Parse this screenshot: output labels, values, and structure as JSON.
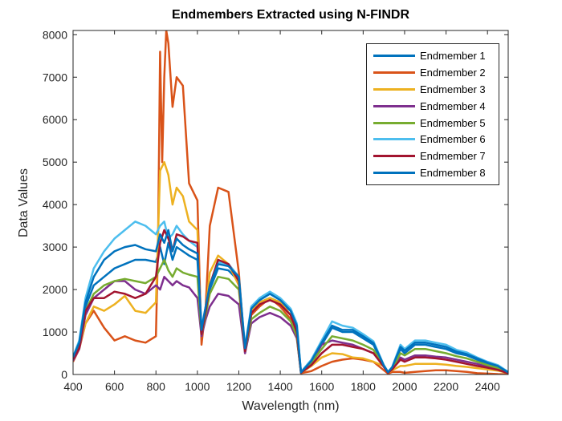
{
  "chart_data": {
    "type": "line",
    "title": "Endmembers Extracted using N-FINDR",
    "xlabel": "Wavelength (nm)",
    "ylabel": "Data Values",
    "xlim": [
      400,
      2500
    ],
    "ylim": [
      0,
      8100
    ],
    "xticks": [
      "400",
      "600",
      "800",
      "1000",
      "1200",
      "1400",
      "1600",
      "1800",
      "2000",
      "2200",
      "2400"
    ],
    "yticks": [
      "0",
      "1000",
      "2000",
      "3000",
      "4000",
      "5000",
      "6000",
      "7000",
      "8000"
    ],
    "legend_position": "top-right",
    "grid": false,
    "series": [
      {
        "name": "Endmember 1",
        "color": "#0072BD",
        "x": [
          400,
          430,
          460,
          500,
          550,
          600,
          650,
          700,
          750,
          800,
          820,
          840,
          860,
          880,
          900,
          930,
          960,
          1000,
          1020,
          1040,
          1060,
          1100,
          1150,
          1200,
          1230,
          1260,
          1300,
          1350,
          1400,
          1450,
          1480,
          1500,
          1550,
          1600,
          1650,
          1700,
          1750,
          1800,
          1850,
          1900,
          1920,
          1940,
          1980,
          2000,
          2050,
          2100,
          2150,
          2200,
          2250,
          2300,
          2350,
          2400,
          2450,
          2500
        ],
        "y": [
          400,
          700,
          1600,
          2100,
          2300,
          2500,
          2600,
          2700,
          2700,
          2650,
          3000,
          2600,
          3100,
          2700,
          3000,
          2900,
          2800,
          2700,
          1000,
          1500,
          2000,
          2500,
          2450,
          2200,
          600,
          1500,
          1700,
          1800,
          1700,
          1500,
          1100,
          50,
          300,
          700,
          1100,
          1000,
          1000,
          850,
          700,
          200,
          50,
          150,
          600,
          500,
          700,
          700,
          650,
          600,
          500,
          450,
          350,
          250,
          200,
          50
        ]
      },
      {
        "name": "Endmember 2",
        "color": "#D95319",
        "x": [
          400,
          430,
          460,
          500,
          550,
          600,
          650,
          700,
          750,
          800,
          810,
          820,
          830,
          840,
          850,
          860,
          880,
          900,
          930,
          960,
          1000,
          1020,
          1040,
          1060,
          1100,
          1150,
          1200,
          1230,
          1260,
          1300,
          1350,
          1400,
          1450,
          1480,
          1500,
          1550,
          1600,
          1650,
          1700,
          1750,
          1800,
          1850,
          1900,
          1920,
          1940,
          1980,
          2000,
          2050,
          2100,
          2150,
          2200,
          2250,
          2300,
          2350,
          2400,
          2450,
          2500
        ],
        "y": [
          300,
          600,
          1200,
          1500,
          1100,
          800,
          900,
          800,
          750,
          900,
          3000,
          7600,
          5000,
          7000,
          8100,
          7800,
          6300,
          7000,
          6800,
          4500,
          4100,
          700,
          1600,
          3500,
          4400,
          4300,
          2400,
          500,
          1400,
          1600,
          1800,
          1600,
          1300,
          900,
          30,
          80,
          200,
          300,
          350,
          380,
          350,
          300,
          100,
          20,
          60,
          60,
          40,
          60,
          80,
          100,
          100,
          80,
          60,
          30,
          20,
          10,
          5
        ]
      },
      {
        "name": "Endmember 3",
        "color": "#EDB120",
        "x": [
          400,
          430,
          460,
          500,
          550,
          600,
          650,
          700,
          750,
          800,
          820,
          840,
          860,
          880,
          900,
          930,
          960,
          1000,
          1020,
          1040,
          1060,
          1100,
          1150,
          1200,
          1230,
          1260,
          1300,
          1350,
          1400,
          1450,
          1480,
          1500,
          1550,
          1600,
          1650,
          1700,
          1750,
          1800,
          1850,
          1900,
          1920,
          1940,
          1980,
          2000,
          2050,
          2100,
          2150,
          2200,
          2250,
          2300,
          2350,
          2400,
          2450,
          2500
        ],
        "y": [
          350,
          650,
          1200,
          1600,
          1500,
          1650,
          1850,
          1500,
          1450,
          1700,
          4800,
          5000,
          4700,
          4000,
          4400,
          4200,
          3600,
          3400,
          900,
          1500,
          2400,
          2800,
          2600,
          2100,
          550,
          1500,
          1700,
          1800,
          1700,
          1400,
          1000,
          40,
          200,
          400,
          500,
          480,
          400,
          380,
          300,
          200,
          40,
          100,
          200,
          200,
          250,
          250,
          250,
          230,
          200,
          180,
          150,
          120,
          90,
          30
        ]
      },
      {
        "name": "Endmember 4",
        "color": "#7E2F8E",
        "x": [
          400,
          430,
          460,
          500,
          550,
          600,
          650,
          700,
          750,
          800,
          820,
          840,
          860,
          880,
          900,
          930,
          960,
          1000,
          1020,
          1040,
          1060,
          1100,
          1150,
          1200,
          1230,
          1260,
          1300,
          1350,
          1400,
          1450,
          1480,
          1500,
          1550,
          1600,
          1650,
          1700,
          1750,
          1800,
          1850,
          1900,
          1920,
          1940,
          1980,
          2000,
          2050,
          2100,
          2150,
          2200,
          2250,
          2300,
          2350,
          2400,
          2450,
          2500
        ],
        "y": [
          330,
          600,
          1400,
          1800,
          2000,
          2200,
          2200,
          2000,
          1900,
          2100,
          2000,
          2300,
          2200,
          2100,
          2200,
          2100,
          2050,
          1800,
          900,
          1300,
          1600,
          1900,
          1850,
          1650,
          500,
          1200,
          1350,
          1450,
          1350,
          1150,
          850,
          40,
          300,
          700,
          800,
          750,
          700,
          600,
          500,
          200,
          50,
          150,
          400,
          350,
          450,
          450,
          420,
          400,
          350,
          300,
          250,
          180,
          120,
          40
        ]
      },
      {
        "name": "Endmember 5",
        "color": "#77AC30",
        "x": [
          400,
          430,
          460,
          500,
          550,
          600,
          650,
          700,
          750,
          800,
          820,
          840,
          860,
          880,
          900,
          930,
          960,
          1000,
          1020,
          1040,
          1060,
          1100,
          1150,
          1200,
          1230,
          1260,
          1300,
          1350,
          1400,
          1450,
          1480,
          1500,
          1550,
          1600,
          1650,
          1700,
          1750,
          1800,
          1850,
          1900,
          1920,
          1940,
          1980,
          2000,
          2050,
          2100,
          2150,
          2200,
          2250,
          2300,
          2350,
          2400,
          2450,
          2500
        ],
        "y": [
          370,
          650,
          1500,
          1900,
          2100,
          2200,
          2250,
          2200,
          2150,
          2300,
          2500,
          2700,
          2450,
          2300,
          2500,
          2400,
          2350,
          2300,
          950,
          1400,
          1900,
          2300,
          2250,
          2000,
          550,
          1300,
          1450,
          1600,
          1500,
          1250,
          900,
          40,
          280,
          600,
          900,
          850,
          800,
          700,
          580,
          190,
          45,
          130,
          500,
          450,
          600,
          600,
          550,
          500,
          430,
          380,
          300,
          220,
          150,
          40
        ]
      },
      {
        "name": "Endmember 6",
        "color": "#4DBEEE",
        "x": [
          400,
          430,
          460,
          500,
          550,
          600,
          650,
          700,
          750,
          800,
          820,
          840,
          860,
          880,
          900,
          930,
          960,
          1000,
          1020,
          1040,
          1060,
          1100,
          1150,
          1200,
          1230,
          1260,
          1300,
          1350,
          1400,
          1450,
          1480,
          1500,
          1550,
          1600,
          1650,
          1700,
          1750,
          1800,
          1850,
          1900,
          1920,
          1940,
          1980,
          2000,
          2050,
          2100,
          2150,
          2200,
          2250,
          2300,
          2350,
          2400,
          2450,
          2500
        ],
        "y": [
          420,
          800,
          1800,
          2500,
          2900,
          3200,
          3400,
          3600,
          3500,
          3300,
          3500,
          3600,
          3200,
          3300,
          3500,
          3300,
          3150,
          3000,
          1100,
          1600,
          2100,
          2650,
          2600,
          2300,
          650,
          1600,
          1800,
          1950,
          1800,
          1550,
          1200,
          60,
          350,
          800,
          1250,
          1150,
          1100,
          950,
          780,
          220,
          60,
          180,
          700,
          600,
          800,
          800,
          750,
          700,
          580,
          520,
          400,
          300,
          220,
          60
        ]
      },
      {
        "name": "Endmember 7",
        "color": "#A2142F",
        "x": [
          400,
          430,
          460,
          500,
          550,
          600,
          650,
          700,
          750,
          800,
          820,
          840,
          860,
          880,
          900,
          930,
          960,
          1000,
          1020,
          1040,
          1060,
          1100,
          1150,
          1200,
          1230,
          1260,
          1300,
          1350,
          1400,
          1450,
          1480,
          1500,
          1550,
          1600,
          1650,
          1700,
          1750,
          1800,
          1850,
          1900,
          1920,
          1940,
          1980,
          2000,
          2050,
          2100,
          2150,
          2200,
          2250,
          2300,
          2350,
          2400,
          2450,
          2500
        ],
        "y": [
          360,
          620,
          1500,
          1800,
          1800,
          1950,
          1900,
          1800,
          1900,
          2300,
          3100,
          3400,
          3200,
          2900,
          3300,
          3250,
          3150,
          3100,
          950,
          1500,
          2100,
          2700,
          2600,
          2200,
          550,
          1450,
          1650,
          1750,
          1650,
          1400,
          1000,
          40,
          220,
          500,
          700,
          700,
          650,
          600,
          500,
          180,
          40,
          120,
          350,
          300,
          400,
          400,
          380,
          350,
          300,
          250,
          200,
          160,
          110,
          30
        ]
      },
      {
        "name": "Endmember 8",
        "color": "#0072BD",
        "x": [
          400,
          430,
          460,
          500,
          550,
          600,
          650,
          700,
          750,
          800,
          820,
          840,
          860,
          880,
          900,
          930,
          960,
          1000,
          1020,
          1040,
          1060,
          1100,
          1150,
          1200,
          1230,
          1260,
          1300,
          1350,
          1400,
          1450,
          1480,
          1500,
          1550,
          1600,
          1650,
          1700,
          1750,
          1800,
          1850,
          1900,
          1920,
          1940,
          1980,
          2000,
          2050,
          2100,
          2150,
          2200,
          2250,
          2300,
          2350,
          2400,
          2450,
          2500
        ],
        "y": [
          410,
          750,
          1700,
          2300,
          2700,
          2900,
          3000,
          3050,
          2950,
          2900,
          3300,
          3100,
          3400,
          2900,
          3200,
          3050,
          2950,
          2850,
          1050,
          1600,
          2100,
          2600,
          2550,
          2300,
          620,
          1550,
          1750,
          1900,
          1750,
          1500,
          1150,
          50,
          320,
          750,
          1150,
          1050,
          1050,
          900,
          740,
          210,
          55,
          170,
          650,
          560,
          750,
          750,
          700,
          650,
          540,
          480,
          380,
          280,
          200,
          50
        ]
      }
    ]
  }
}
